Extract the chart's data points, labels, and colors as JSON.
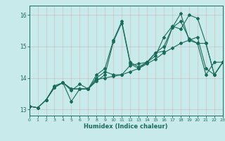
{
  "xlabel": "Humidex (Indice chaleur)",
  "bg_color": "#c8eaea",
  "grid_color": "#b0c8c8",
  "line_color": "#1a6b5a",
  "xlim": [
    0,
    23
  ],
  "ylim": [
    12.8,
    16.3
  ],
  "yticks": [
    13,
    14,
    15,
    16
  ],
  "xticks": [
    0,
    1,
    2,
    3,
    4,
    5,
    6,
    7,
    8,
    9,
    10,
    11,
    12,
    13,
    14,
    15,
    16,
    17,
    18,
    19,
    20,
    21,
    22,
    23
  ],
  "lines": [
    {
      "x": [
        0,
        1,
        2,
        3,
        4,
        5,
        6,
        7,
        8,
        9,
        10,
        11,
        12,
        13,
        14,
        15,
        16,
        17,
        18,
        19,
        20,
        21,
        22,
        23
      ],
      "y": [
        13.1,
        13.05,
        13.3,
        13.7,
        13.85,
        13.25,
        13.65,
        13.65,
        13.9,
        14.1,
        15.15,
        15.75,
        14.45,
        14.3,
        14.5,
        14.8,
        14.85,
        15.6,
        16.05,
        15.2,
        15.1,
        14.1,
        14.5,
        14.5
      ]
    },
    {
      "x": [
        0,
        1,
        2,
        3,
        4,
        5,
        6,
        7,
        8,
        9,
        10,
        11,
        12,
        13,
        14,
        15,
        16,
        17,
        18,
        19,
        20,
        21,
        22,
        23
      ],
      "y": [
        13.1,
        13.05,
        13.3,
        13.7,
        13.85,
        13.65,
        13.65,
        13.65,
        14.0,
        14.2,
        14.1,
        14.1,
        14.4,
        14.45,
        14.5,
        14.7,
        15.3,
        15.65,
        15.55,
        16.0,
        15.9,
        15.1,
        14.1,
        14.5
      ]
    },
    {
      "x": [
        0,
        1,
        2,
        3,
        4,
        5,
        6,
        7,
        8,
        9,
        10,
        11,
        12,
        13,
        14,
        15,
        16,
        17,
        18,
        19,
        20,
        21,
        22,
        23
      ],
      "y": [
        13.1,
        13.05,
        13.3,
        13.7,
        13.85,
        13.65,
        13.65,
        13.65,
        13.95,
        14.0,
        14.05,
        14.1,
        14.2,
        14.3,
        14.45,
        14.6,
        14.8,
        14.95,
        15.1,
        15.2,
        15.3,
        14.3,
        14.1,
        14.5
      ]
    },
    {
      "x": [
        2,
        3,
        4,
        5,
        6,
        7,
        8,
        9,
        10,
        11,
        12,
        13,
        14,
        15,
        16,
        17,
        18,
        19,
        20,
        21,
        22,
        23
      ],
      "y": [
        13.3,
        13.75,
        13.85,
        13.6,
        13.8,
        13.65,
        14.1,
        14.3,
        15.2,
        15.8,
        14.5,
        14.35,
        14.5,
        14.8,
        15.0,
        15.6,
        15.8,
        15.25,
        15.1,
        15.1,
        14.1,
        14.5
      ]
    }
  ]
}
